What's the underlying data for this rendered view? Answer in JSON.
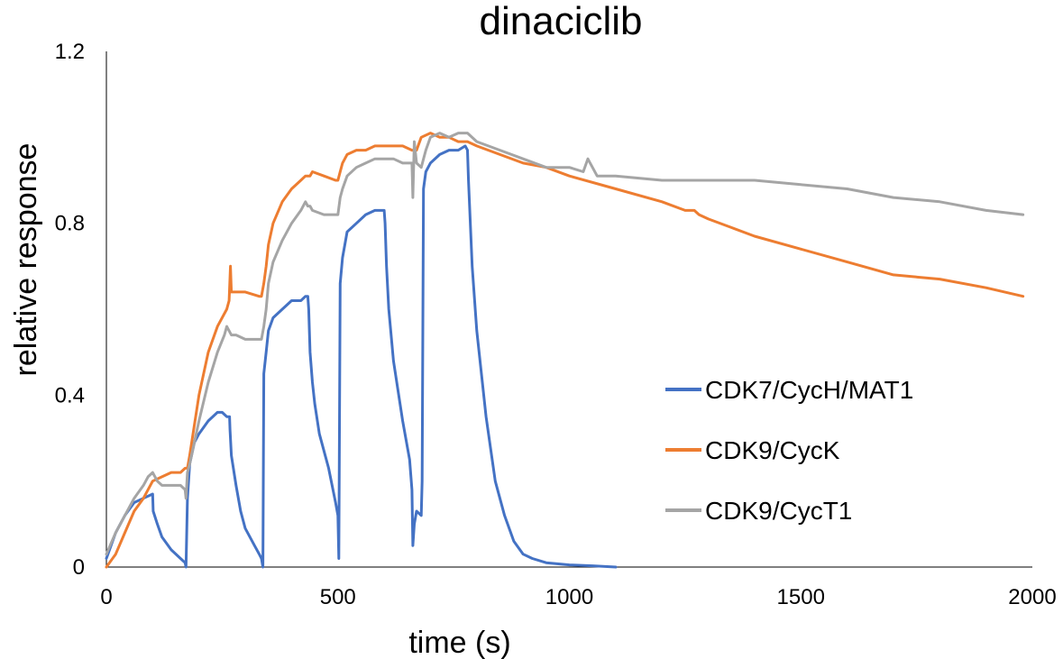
{
  "chart_data": {
    "type": "line",
    "title": "dinaciclib",
    "xlabel": "time (s)",
    "ylabel": "relative response",
    "xlim": [
      0,
      2000
    ],
    "ylim": [
      0,
      1.2
    ],
    "x_ticks": [
      {
        "value": 0,
        "label": "0"
      },
      {
        "value": 500,
        "label": "500"
      },
      {
        "value": 1000,
        "label": "1000"
      },
      {
        "value": 1500,
        "label": "1500"
      },
      {
        "value": 2000,
        "label": "2000"
      }
    ],
    "y_ticks": [
      {
        "value": 0,
        "label": "0"
      },
      {
        "value": 0.4,
        "label": "0.4"
      },
      {
        "value": 0.8,
        "label": "0.8"
      },
      {
        "value": 1.2,
        "label": "1.2"
      }
    ],
    "grid": false,
    "legend_position": "right",
    "series": [
      {
        "name": "CDK7/CycH/MAT1",
        "color": "#4472C4",
        "x": [
          0,
          20,
          40,
          60,
          80,
          100,
          101,
          110,
          120,
          140,
          160,
          170,
          172,
          175,
          180,
          190,
          200,
          220,
          240,
          250,
          260,
          266,
          267,
          270,
          280,
          290,
          300,
          320,
          330,
          335,
          338,
          340,
          345,
          350,
          360,
          380,
          400,
          420,
          430,
          435,
          437,
          440,
          445,
          450,
          460,
          480,
          495,
          500,
          502,
          505,
          510,
          520,
          540,
          560,
          580,
          595,
          600,
          602,
          605,
          610,
          620,
          640,
          655,
          660,
          662,
          665,
          670,
          680,
          682,
          685,
          690,
          700,
          720,
          740,
          760,
          775,
          780,
          782,
          790,
          800,
          820,
          840,
          860,
          880,
          900,
          920,
          950,
          1000,
          1050,
          1100
        ],
        "y": [
          0.02,
          0.08,
          0.12,
          0.15,
          0.16,
          0.17,
          0.13,
          0.1,
          0.07,
          0.04,
          0.02,
          0.01,
          0.0,
          0.16,
          0.24,
          0.29,
          0.31,
          0.34,
          0.36,
          0.36,
          0.35,
          0.35,
          0.32,
          0.26,
          0.19,
          0.13,
          0.09,
          0.05,
          0.03,
          0.02,
          0.0,
          0.45,
          0.5,
          0.55,
          0.58,
          0.6,
          0.62,
          0.62,
          0.63,
          0.63,
          0.6,
          0.5,
          0.43,
          0.38,
          0.31,
          0.23,
          0.15,
          0.12,
          0.02,
          0.66,
          0.72,
          0.78,
          0.8,
          0.82,
          0.83,
          0.83,
          0.83,
          0.8,
          0.7,
          0.6,
          0.48,
          0.34,
          0.25,
          0.18,
          0.05,
          0.1,
          0.13,
          0.12,
          0.2,
          0.88,
          0.92,
          0.94,
          0.96,
          0.97,
          0.97,
          0.98,
          0.97,
          0.9,
          0.7,
          0.55,
          0.35,
          0.2,
          0.12,
          0.06,
          0.03,
          0.02,
          0.01,
          0.005,
          0.003,
          0.0
        ]
      },
      {
        "name": "CDK9/CycK",
        "color": "#ED7D31",
        "x": [
          0,
          20,
          40,
          60,
          80,
          100,
          120,
          140,
          160,
          170,
          175,
          180,
          200,
          220,
          240,
          260,
          265,
          268,
          270,
          280,
          300,
          330,
          335,
          340,
          345,
          350,
          360,
          380,
          400,
          420,
          430,
          435,
          440,
          445,
          470,
          495,
          500,
          505,
          510,
          520,
          540,
          560,
          580,
          600,
          620,
          640,
          660,
          670,
          680,
          700,
          720,
          740,
          760,
          780,
          800,
          850,
          900,
          950,
          1000,
          1100,
          1200,
          1250,
          1270,
          1280,
          1300,
          1350,
          1400,
          1500,
          1600,
          1700,
          1800,
          1900,
          1980
        ],
        "y": [
          0.0,
          0.03,
          0.08,
          0.13,
          0.16,
          0.2,
          0.21,
          0.22,
          0.22,
          0.23,
          0.23,
          0.26,
          0.4,
          0.5,
          0.56,
          0.6,
          0.62,
          0.7,
          0.64,
          0.64,
          0.64,
          0.63,
          0.63,
          0.66,
          0.7,
          0.75,
          0.8,
          0.85,
          0.88,
          0.9,
          0.91,
          0.91,
          0.91,
          0.92,
          0.91,
          0.9,
          0.9,
          0.92,
          0.94,
          0.96,
          0.97,
          0.97,
          0.98,
          0.98,
          0.98,
          0.98,
          0.97,
          0.97,
          1.0,
          1.01,
          1.0,
          1.0,
          0.99,
          0.99,
          0.98,
          0.96,
          0.94,
          0.93,
          0.91,
          0.88,
          0.85,
          0.83,
          0.83,
          0.82,
          0.81,
          0.79,
          0.77,
          0.74,
          0.71,
          0.68,
          0.67,
          0.65,
          0.63
        ]
      },
      {
        "name": "CDK9/CycT1",
        "color": "#A5A5A5",
        "x": [
          0,
          20,
          40,
          60,
          80,
          90,
          100,
          110,
          120,
          140,
          160,
          170,
          172,
          175,
          180,
          200,
          220,
          240,
          255,
          260,
          270,
          280,
          300,
          330,
          335,
          340,
          345,
          350,
          360,
          380,
          400,
          420,
          430,
          435,
          440,
          445,
          470,
          495,
          500,
          505,
          510,
          520,
          540,
          560,
          580,
          600,
          620,
          640,
          660,
          662,
          665,
          670,
          680,
          690,
          700,
          720,
          740,
          760,
          780,
          800,
          850,
          900,
          950,
          1000,
          1030,
          1040,
          1060,
          1100,
          1200,
          1300,
          1400,
          1500,
          1600,
          1700,
          1800,
          1900,
          1980
        ],
        "y": [
          0.03,
          0.08,
          0.12,
          0.16,
          0.19,
          0.21,
          0.22,
          0.2,
          0.19,
          0.19,
          0.19,
          0.18,
          0.16,
          0.22,
          0.24,
          0.34,
          0.43,
          0.5,
          0.54,
          0.56,
          0.54,
          0.54,
          0.53,
          0.53,
          0.53,
          0.56,
          0.6,
          0.66,
          0.71,
          0.76,
          0.8,
          0.83,
          0.85,
          0.84,
          0.84,
          0.83,
          0.82,
          0.82,
          0.82,
          0.86,
          0.88,
          0.91,
          0.93,
          0.94,
          0.95,
          0.95,
          0.95,
          0.94,
          0.94,
          0.86,
          0.99,
          0.94,
          0.93,
          0.97,
          1.0,
          1.01,
          1.0,
          1.01,
          1.01,
          0.99,
          0.97,
          0.95,
          0.93,
          0.93,
          0.92,
          0.95,
          0.91,
          0.91,
          0.9,
          0.9,
          0.9,
          0.89,
          0.88,
          0.86,
          0.85,
          0.83,
          0.82
        ]
      }
    ]
  }
}
